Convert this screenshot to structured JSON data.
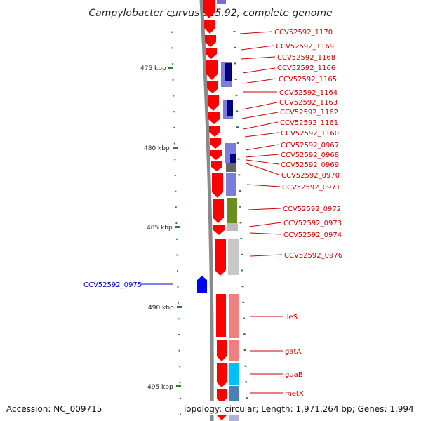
{
  "title": "Campylobacter curvus 525.92, complete genome",
  "accession": "Accession: NC_009715",
  "topology": "Topology: circular; Length: 1,971,264 bp; Genes: 1,994",
  "kbp_labels": [
    "475 kbp",
    "480 kbp",
    "485 kbp",
    "490 kbp",
    "495 kbp"
  ],
  "colors": {
    "forward_gene": "#ff0000",
    "reverse_gene": "#0000ff",
    "backbone": "#888888",
    "tick": "#2e7d32",
    "label_red": "#cc0000",
    "label_blue": "#0000cc"
  },
  "gene_labels_right": [
    "CCV52592_1170",
    "CCV52592_1169",
    "CCV52592_1168",
    "CCV52592_1166",
    "CCV52592_1165",
    "CCV52592_1164",
    "CCV52592_1163",
    "CCV52592_1162",
    "CCV52592_1161",
    "CCV52592_1160",
    "CCV52592_0967",
    "CCV52592_0968",
    "CCV52592_0969",
    "CCV52592_0970",
    "CCV52592_0971",
    "CCV52592_0972",
    "CCV52592_0973",
    "CCV52592_0974",
    "CCV52592_0976",
    "ileS",
    "gatA",
    "guaB",
    "metX"
  ],
  "gene_label_left": "CCV52592_0975"
}
